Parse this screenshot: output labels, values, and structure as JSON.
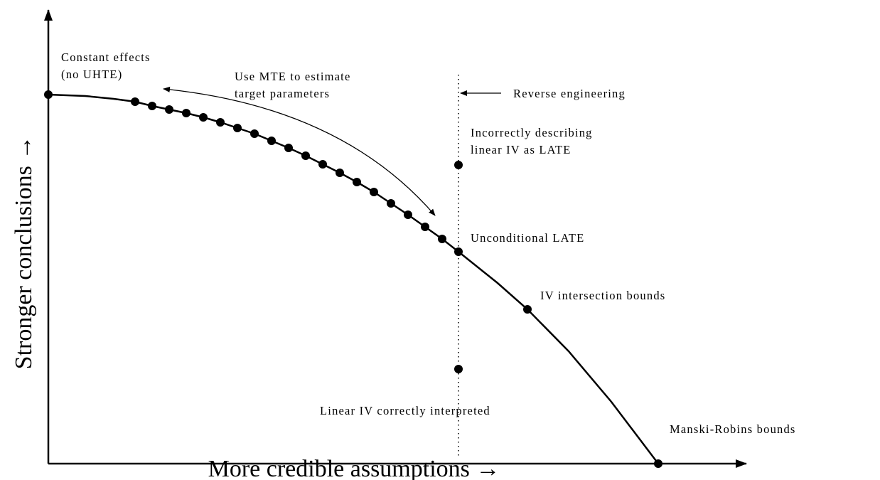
{
  "axes": {
    "x_label": "More credible assumptions →",
    "y_label": "Stronger conclusions →"
  },
  "annotations": {
    "constant_effects": [
      "Constant effects",
      "(no UHTE)"
    ],
    "use_mte": [
      "Use MTE to estimate",
      "target parameters"
    ],
    "reverse_engineering": [
      "Reverse engineering"
    ],
    "incorrectly_describing": [
      "Incorrectly describing",
      "linear IV as LATE"
    ],
    "unconditional_late": [
      "Unconditional LATE"
    ],
    "iv_intersection": [
      "IV intersection bounds"
    ],
    "linear_iv_correct": [
      "Linear IV correctly interpreted"
    ],
    "manski_robins": [
      "Manski-Robins bounds"
    ]
  }
}
